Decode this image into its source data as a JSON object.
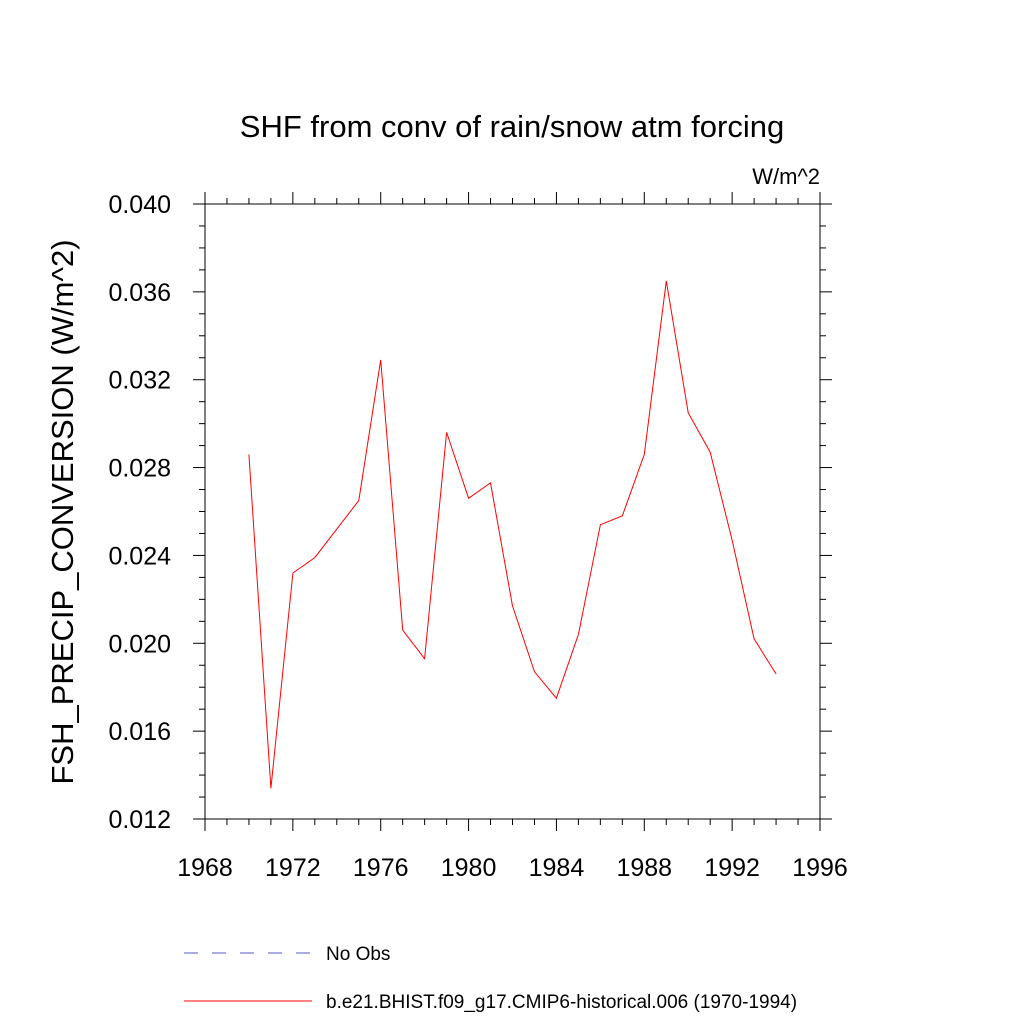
{
  "chart_data": {
    "type": "line",
    "title": "SHF from conv of rain/snow atm forcing",
    "units": "W/m^2",
    "xlabel": "",
    "ylabel": "FSH_PRECIP_CONVERSION  (W/m^2)",
    "xlim": [
      1968,
      1996
    ],
    "ylim": [
      0.012,
      0.04
    ],
    "x_ticks": [
      1968,
      1972,
      1976,
      1980,
      1984,
      1988,
      1992,
      1996
    ],
    "y_ticks": [
      0.012,
      0.016,
      0.02,
      0.024,
      0.028,
      0.032,
      0.036,
      0.04
    ],
    "x_tick_labels": [
      "1968",
      "1972",
      "1976",
      "1980",
      "1984",
      "1988",
      "1992",
      "1996"
    ],
    "y_tick_labels": [
      "0.012",
      "0.016",
      "0.020",
      "0.024",
      "0.028",
      "0.032",
      "0.036",
      "0.040"
    ],
    "grid": false,
    "legend_position": "bottom",
    "series": [
      {
        "name": "b.e21.BHIST.f09_g17.CMIP6-historical.006 (1970-1994)",
        "color": "#ff0000",
        "style": "solid",
        "x": [
          1970,
          1971,
          1972,
          1973,
          1974,
          1975,
          1976,
          1977,
          1978,
          1979,
          1980,
          1981,
          1982,
          1983,
          1984,
          1985,
          1986,
          1987,
          1988,
          1989,
          1990,
          1991,
          1992,
          1993,
          1994
        ],
        "y": [
          0.0286,
          0.0134,
          0.0232,
          0.0239,
          0.0252,
          0.0265,
          0.0329,
          0.0206,
          0.0193,
          0.0296,
          0.0266,
          0.0273,
          0.0217,
          0.0187,
          0.0175,
          0.0204,
          0.0254,
          0.0258,
          0.0286,
          0.0365,
          0.0305,
          0.0287,
          0.0247,
          0.0202,
          0.0186
        ]
      }
    ],
    "legend": [
      {
        "label": "No Obs",
        "color": "#5555cc",
        "style": "dashed"
      },
      {
        "label": "b.e21.BHIST.f09_g17.CMIP6-historical.006 (1970-1994)",
        "color": "#ff0000",
        "style": "solid"
      }
    ]
  }
}
